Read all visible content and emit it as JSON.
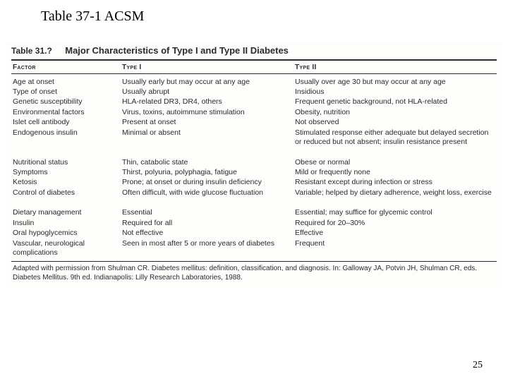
{
  "slideTitle": "Table 37-1 ACSM",
  "tableLabel": "Table 31.?",
  "tableTitle": "Major Characteristics of Type I and Type II Diabetes",
  "columns": {
    "c1": "Factor",
    "c2": "Type I",
    "c3": "Type II"
  },
  "blocks": [
    {
      "factor": [
        "Age at onset",
        "Type of onset",
        "Genetic susceptibility",
        "Environmental factors",
        "Islet cell antibody",
        "Endogenous insulin"
      ],
      "type1": [
        "Usually early but may occur at any age",
        "Usually abrupt",
        "HLA-related DR3, DR4, others",
        "Virus, toxins, autoimmune stimulation",
        "Present at onset",
        "Minimal or absent"
      ],
      "type2": [
        "Usually over age 30 but may occur at any age",
        "Insidious",
        "Frequent genetic background, not HLA-related",
        "Obesity, nutrition",
        "Not observed",
        "Stimulated response either adequate but delayed secretion or reduced but not absent; insulin resistance present"
      ]
    },
    {
      "factor": [
        "Nutritional status",
        "Symptoms",
        "Ketosis",
        "Control of diabetes"
      ],
      "type1": [
        "Thin, catabolic state",
        "Thirst, polyuria, polyphagia, fatigue",
        "Prone; at onset or during insulin deficiency",
        "Often difficult, with wide glucose fluctuation"
      ],
      "type2": [
        "Obese or normal",
        "Mild or frequently none",
        "Resistant except during infection or stress",
        "Variable; helped by dietary adherence, weight loss, exercise"
      ]
    },
    {
      "factor": [
        "Dietary management",
        "Insulin",
        "Oral hypoglycemics",
        "Vascular, neurological complications"
      ],
      "type1": [
        "Essential",
        "Required for all",
        "Not effective",
        "Seen in most after 5 or more years of diabetes"
      ],
      "type2": [
        "Essential; may suffice for glycemic control",
        "Required for 20–30%",
        "Effective",
        "Frequent"
      ]
    }
  ],
  "footnote": "Adapted with permission from Shulman CR. Diabetes mellitus: definition, classification, and diagnosis. In: Galloway JA, Potvin JH, Shulman CR, eds. Diabetes Mellitus. 9th ed. Indianapolis: Lilly Research Laboratories, 1988.",
  "pageNumber": "25"
}
